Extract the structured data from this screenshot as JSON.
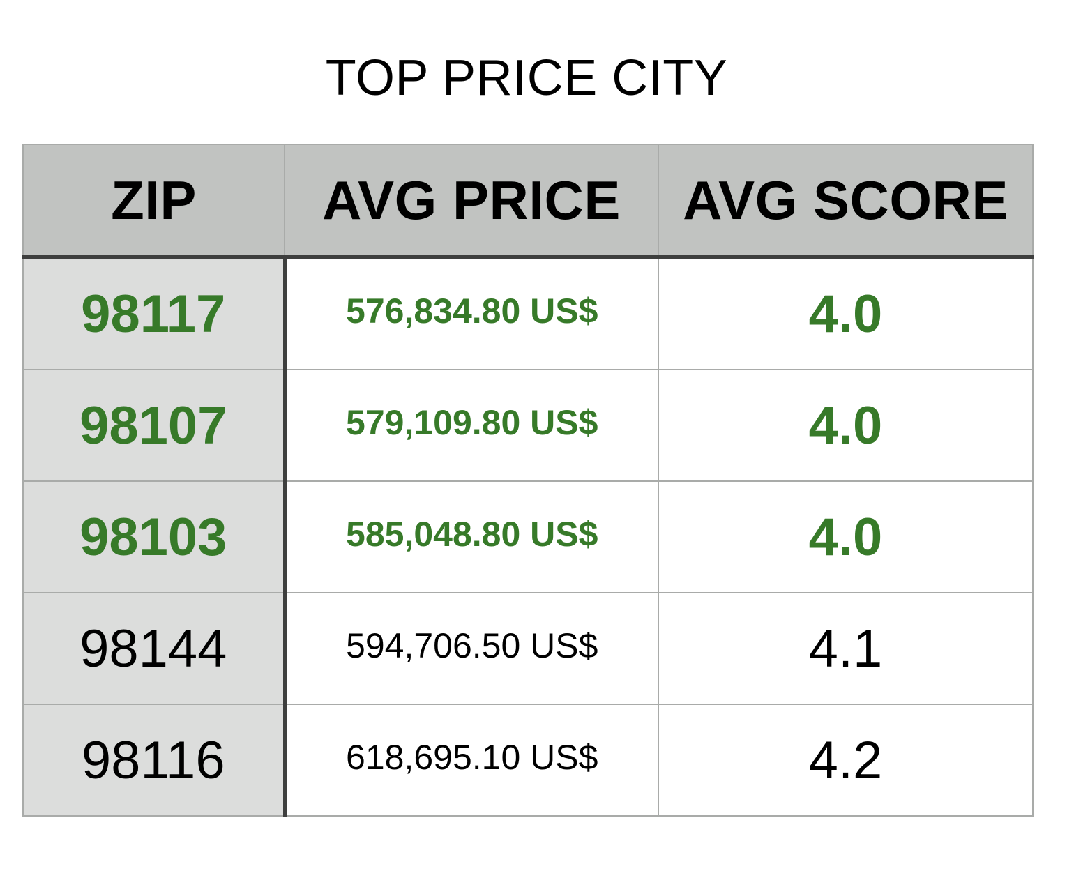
{
  "chart_data": {
    "type": "table",
    "title": "TOP PRICE CITY",
    "columns": [
      "ZIP",
      "AVG PRICE",
      "AVG SCORE"
    ],
    "rows": [
      {
        "zip": "98117",
        "avg_price": "576,834.80 US$",
        "avg_score": "4.0",
        "highlight": true
      },
      {
        "zip": "98107",
        "avg_price": "579,109.80 US$",
        "avg_score": "4.0",
        "highlight": true
      },
      {
        "zip": "98103",
        "avg_price": "585,048.80 US$",
        "avg_score": "4.0",
        "highlight": true
      },
      {
        "zip": "98144",
        "avg_price": "594,706.50 US$",
        "avg_score": "4.1",
        "highlight": false
      },
      {
        "zip": "98116",
        "avg_price": "618,695.10 US$",
        "avg_score": "4.2",
        "highlight": false
      }
    ],
    "colors": {
      "highlight_text": "#377a29",
      "header_bg": "#c1c3c1",
      "zip_column_bg": "#dcdddc",
      "grid_line": "#a9aba9",
      "heavy_rule": "#3e3f3e"
    }
  }
}
